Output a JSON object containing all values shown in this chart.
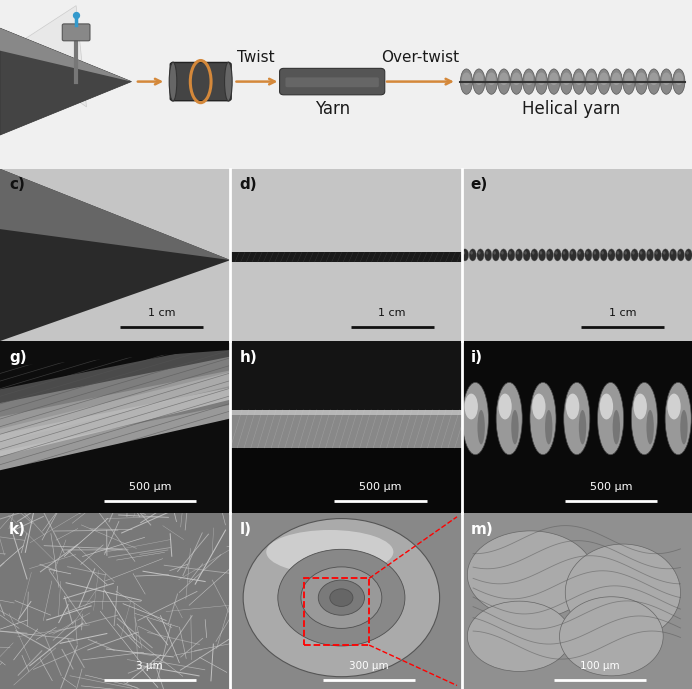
{
  "fig_width": 6.92,
  "fig_height": 6.89,
  "dpi": 100,
  "background_color": "#ffffff",
  "schematic_labels": {
    "twist": "Twist",
    "overtwist": "Over-twist",
    "yarn": "Yarn",
    "helical_yarn": "Helical yarn"
  },
  "scale_bars": {
    "c": "1 cm",
    "d": "1 cm",
    "e": "1 cm",
    "g": "500 μm",
    "h": "500 μm",
    "i": "500 μm",
    "k": "3 μm",
    "l": "300 μm",
    "m": "100 μm"
  },
  "arrow_color": "#D4883A",
  "text_color": "#1a1a1a",
  "schema_bg": "#f0f0f0",
  "label_fontsize": 10,
  "scale_fontsize": 8,
  "schema_fontsize": 11
}
